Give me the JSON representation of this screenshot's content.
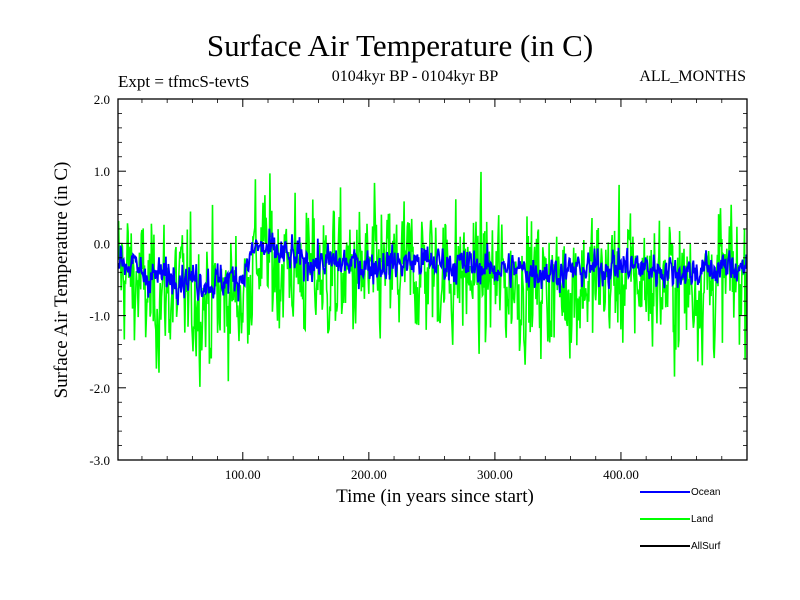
{
  "header": {
    "title": "Surface Air Temperature (in C)",
    "expt": "Expt = tfmcS-tevtS",
    "period": "0104kyr BP - 0104kyr BP",
    "months": "ALL_MONTHS"
  },
  "chart_data": {
    "type": "line",
    "title": "Surface Air Temperature (in C)",
    "xlabel": "Time (in years since start)",
    "ylabel": "Surface Air Temperature (in C)",
    "xlim": [
      1,
      500
    ],
    "ylim": [
      -3.0,
      2.0
    ],
    "x_ticks": [
      "100.00",
      "200.00",
      "300.00",
      "400.00"
    ],
    "y_ticks": [
      "2.0",
      "1.0",
      "0.0",
      "-1.0",
      "-2.0",
      "-3.0"
    ],
    "reference_line": 0.0,
    "legend_position": "bottom-right, outside plot",
    "series": [
      {
        "name": "Ocean",
        "color": "#0000ff",
        "x": [
          1,
          25,
          50,
          75,
          100,
          110,
          150,
          200,
          250,
          300,
          350,
          400,
          450,
          500
        ],
        "values": [
          -0.2,
          -0.45,
          -0.45,
          -0.55,
          -0.45,
          -0.05,
          -0.25,
          -0.3,
          -0.25,
          -0.35,
          -0.4,
          -0.3,
          -0.4,
          -0.3
        ]
      },
      {
        "name": "Land",
        "color": "#00ff00",
        "x": [
          1,
          25,
          50,
          75,
          100,
          110,
          150,
          200,
          250,
          300,
          350,
          400,
          450,
          500
        ],
        "values": [
          -0.3,
          -0.7,
          -0.7,
          -0.8,
          -0.7,
          -0.15,
          -0.4,
          -0.45,
          -0.35,
          -0.5,
          -0.6,
          -0.45,
          -0.6,
          -0.45
        ]
      },
      {
        "name": "AllSurf",
        "color": "#000000",
        "x": [],
        "values": []
      }
    ]
  }
}
